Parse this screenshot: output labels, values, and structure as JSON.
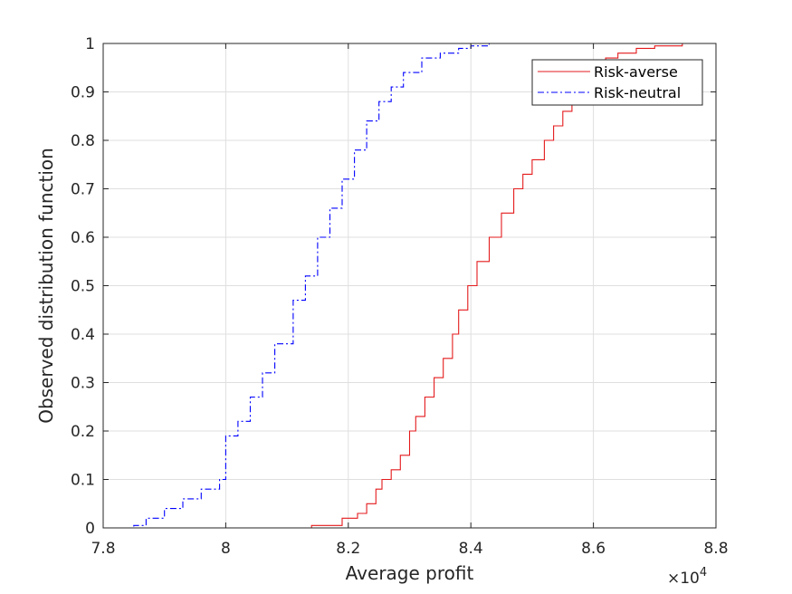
{
  "chart_data": {
    "type": "line",
    "title": "",
    "xlabel": "Average profit",
    "ylabel": "Observed distribution function",
    "x_multiplier_label": "×10",
    "x_multiplier_exponent": "4",
    "xlim": [
      78000,
      88000
    ],
    "ylim": [
      0,
      1
    ],
    "xticks": [
      78000,
      80000,
      82000,
      84000,
      86000,
      88000
    ],
    "xtick_labels": [
      "7.8",
      "8",
      "8.2",
      "8.4",
      "8.6",
      "8.8"
    ],
    "yticks": [
      0,
      0.1,
      0.2,
      0.3,
      0.4,
      0.5,
      0.6,
      0.7,
      0.8,
      0.9,
      1
    ],
    "ytick_labels": [
      "0",
      "0.1",
      "0.2",
      "0.3",
      "0.4",
      "0.5",
      "0.6",
      "0.7",
      "0.8",
      "0.9",
      "1"
    ],
    "grid": true,
    "legend_position": "top-right",
    "series": [
      {
        "name": "Risk-averse",
        "color": "#e41a1c",
        "line_style": "solid",
        "x": [
          80550,
          81400,
          81900,
          82150,
          82300,
          82450,
          82550,
          82700,
          82850,
          83000,
          83100,
          83250,
          83400,
          83550,
          83700,
          83800,
          83950,
          84100,
          84300,
          84500,
          84700,
          84850,
          85000,
          85200,
          85350,
          85500,
          85650,
          85800,
          86000,
          86200,
          86400,
          86700,
          87000,
          87450
        ],
        "y": [
          0,
          0.005,
          0.02,
          0.03,
          0.05,
          0.08,
          0.1,
          0.12,
          0.15,
          0.2,
          0.23,
          0.27,
          0.31,
          0.35,
          0.4,
          0.45,
          0.5,
          0.55,
          0.6,
          0.65,
          0.7,
          0.73,
          0.76,
          0.8,
          0.83,
          0.86,
          0.9,
          0.93,
          0.95,
          0.97,
          0.98,
          0.99,
          0.995,
          1.0
        ]
      },
      {
        "name": "Risk-neutral",
        "color": "#0000ff",
        "line_style": "dash-dot",
        "x": [
          78300,
          78500,
          78700,
          79000,
          79300,
          79600,
          79900,
          80000,
          80200,
          80400,
          80600,
          80800,
          81100,
          81300,
          81500,
          81700,
          81900,
          82100,
          82300,
          82500,
          82700,
          82900,
          83200,
          83500,
          83800,
          84000,
          84300,
          84500
        ],
        "y": [
          0,
          0.005,
          0.02,
          0.04,
          0.06,
          0.08,
          0.1,
          0.19,
          0.22,
          0.27,
          0.32,
          0.38,
          0.47,
          0.52,
          0.6,
          0.66,
          0.72,
          0.78,
          0.84,
          0.88,
          0.91,
          0.94,
          0.97,
          0.98,
          0.99,
          0.995,
          1.0,
          1.0
        ]
      }
    ]
  }
}
